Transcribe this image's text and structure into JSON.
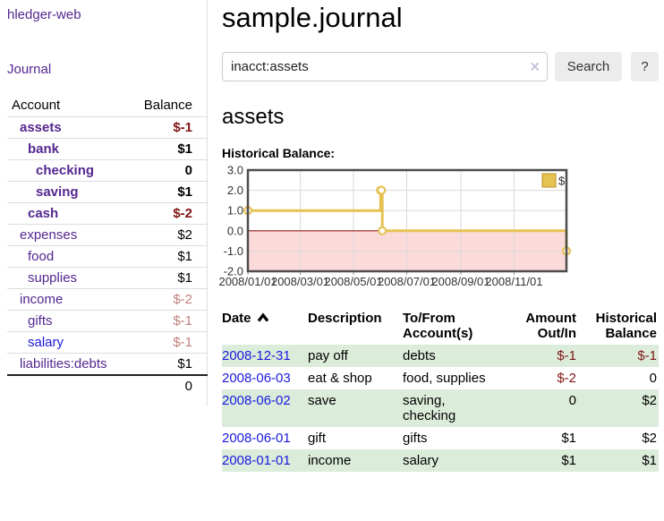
{
  "app": {
    "title": "hledger-web",
    "nav_journal": "Journal"
  },
  "colors": {
    "link_purple": "#54278f",
    "link_blue": "#1a1adf",
    "negative_strong": "#801515",
    "negative_soft": "#c1807e",
    "row_green": "#dcecdb",
    "chart_gold": "#e6c254",
    "chart_negative_fill": "#fbdada",
    "chart_zero_line": "#8e1a18"
  },
  "sidebar": {
    "header": {
      "account": "Account",
      "balance": "Balance"
    },
    "accounts": [
      {
        "name": "assets",
        "indent": 1,
        "bold": true,
        "link_color": "purple",
        "balance": "$-1",
        "balance_style": "neg-strong"
      },
      {
        "name": "bank",
        "indent": 2,
        "bold": true,
        "link_color": "purple",
        "balance": "$1",
        "balance_style": "pos"
      },
      {
        "name": "checking",
        "indent": 3,
        "bold": true,
        "link_color": "purple",
        "balance": "0",
        "balance_style": "pos"
      },
      {
        "name": "saving",
        "indent": 3,
        "bold": true,
        "link_color": "purple",
        "balance": "$1",
        "balance_style": "pos"
      },
      {
        "name": "cash",
        "indent": 2,
        "bold": true,
        "link_color": "purple",
        "balance": "$-2",
        "balance_style": "neg-strong"
      },
      {
        "name": "expenses",
        "indent": 1,
        "bold": false,
        "link_color": "purple",
        "balance": "$2",
        "balance_style": "pos"
      },
      {
        "name": "food",
        "indent": 2,
        "bold": false,
        "link_color": "purple",
        "balance": "$1",
        "balance_style": "pos"
      },
      {
        "name": "supplies",
        "indent": 2,
        "bold": false,
        "link_color": "purple",
        "balance": "$1",
        "balance_style": "pos"
      },
      {
        "name": "income",
        "indent": 1,
        "bold": false,
        "link_color": "purple",
        "balance": "$-2",
        "balance_style": "neg-soft"
      },
      {
        "name": "gifts",
        "indent": 2,
        "bold": false,
        "link_color": "purple",
        "balance": "$-1",
        "balance_style": "neg-soft"
      },
      {
        "name": "salary",
        "indent": 2,
        "bold": false,
        "link_color": "blue",
        "balance": "$-1",
        "balance_style": "neg-soft"
      },
      {
        "name": "liabilities:debts",
        "indent": 1,
        "bold": false,
        "link_color": "purple",
        "balance": "$1",
        "balance_style": "pos"
      }
    ],
    "total": "0"
  },
  "main": {
    "title": "sample.journal",
    "search": {
      "value": "inacct:assets",
      "clear_glyph": "×",
      "button_label": "Search",
      "help_label": "?"
    },
    "account_heading": "assets",
    "chart_label": "Historical Balance:"
  },
  "chart_data": {
    "type": "line",
    "title": "Historical Balance",
    "step": true,
    "series": [
      {
        "name": "$",
        "color": "#e6c254",
        "points": [
          {
            "date": "2008-01-01",
            "value": 1
          },
          {
            "date": "2008-06-01",
            "value": 2
          },
          {
            "date": "2008-06-02",
            "value": 2
          },
          {
            "date": "2008-06-03",
            "value": 0
          },
          {
            "date": "2008-12-31",
            "value": -1
          }
        ]
      }
    ],
    "x_range": [
      "2008-01-01",
      "2008-12-31"
    ],
    "x_tick_dates": [
      "2008-01-01",
      "2008-03-01",
      "2008-05-01",
      "2008-07-01",
      "2008-09-01",
      "2008-11-01"
    ],
    "x_tick_labels": [
      "2008/01/01",
      "2008/03/01",
      "2008/05/01",
      "2008/07/01",
      "2008/09/01",
      "2008/11/01"
    ],
    "y_ticks": [
      3.0,
      2.0,
      1.0,
      0.0,
      -1.0,
      -2.0
    ],
    "ylim": [
      -2,
      3
    ],
    "legend": {
      "label": "$",
      "position": "top-right"
    },
    "grid": true,
    "negative_region_color": "#fbdada",
    "zero_line_color": "#8e1a18"
  },
  "register": {
    "headers": {
      "date": "Date",
      "description": "Description",
      "accounts": "To/From Account(s)",
      "amount": "Amount Out/In",
      "balance": "Historical Balance"
    },
    "rows": [
      {
        "date": "2008-12-31",
        "description": "pay off",
        "accounts": "debts",
        "amount": "$-1",
        "amount_style": "neg",
        "balance": "$-1",
        "balance_style": "neg"
      },
      {
        "date": "2008-06-03",
        "description": "eat & shop",
        "accounts": "food, supplies",
        "amount": "$-2",
        "amount_style": "neg",
        "balance": "0",
        "balance_style": "pos"
      },
      {
        "date": "2008-06-02",
        "description": "save",
        "accounts": "saving, checking",
        "amount": "0",
        "amount_style": "pos",
        "balance": "$2",
        "balance_style": "pos"
      },
      {
        "date": "2008-06-01",
        "description": "gift",
        "accounts": "gifts",
        "amount": "$1",
        "amount_style": "pos",
        "balance": "$2",
        "balance_style": "pos"
      },
      {
        "date": "2008-01-01",
        "description": "income",
        "accounts": "salary",
        "amount": "$1",
        "amount_style": "pos",
        "balance": "$1",
        "balance_style": "pos"
      }
    ]
  }
}
